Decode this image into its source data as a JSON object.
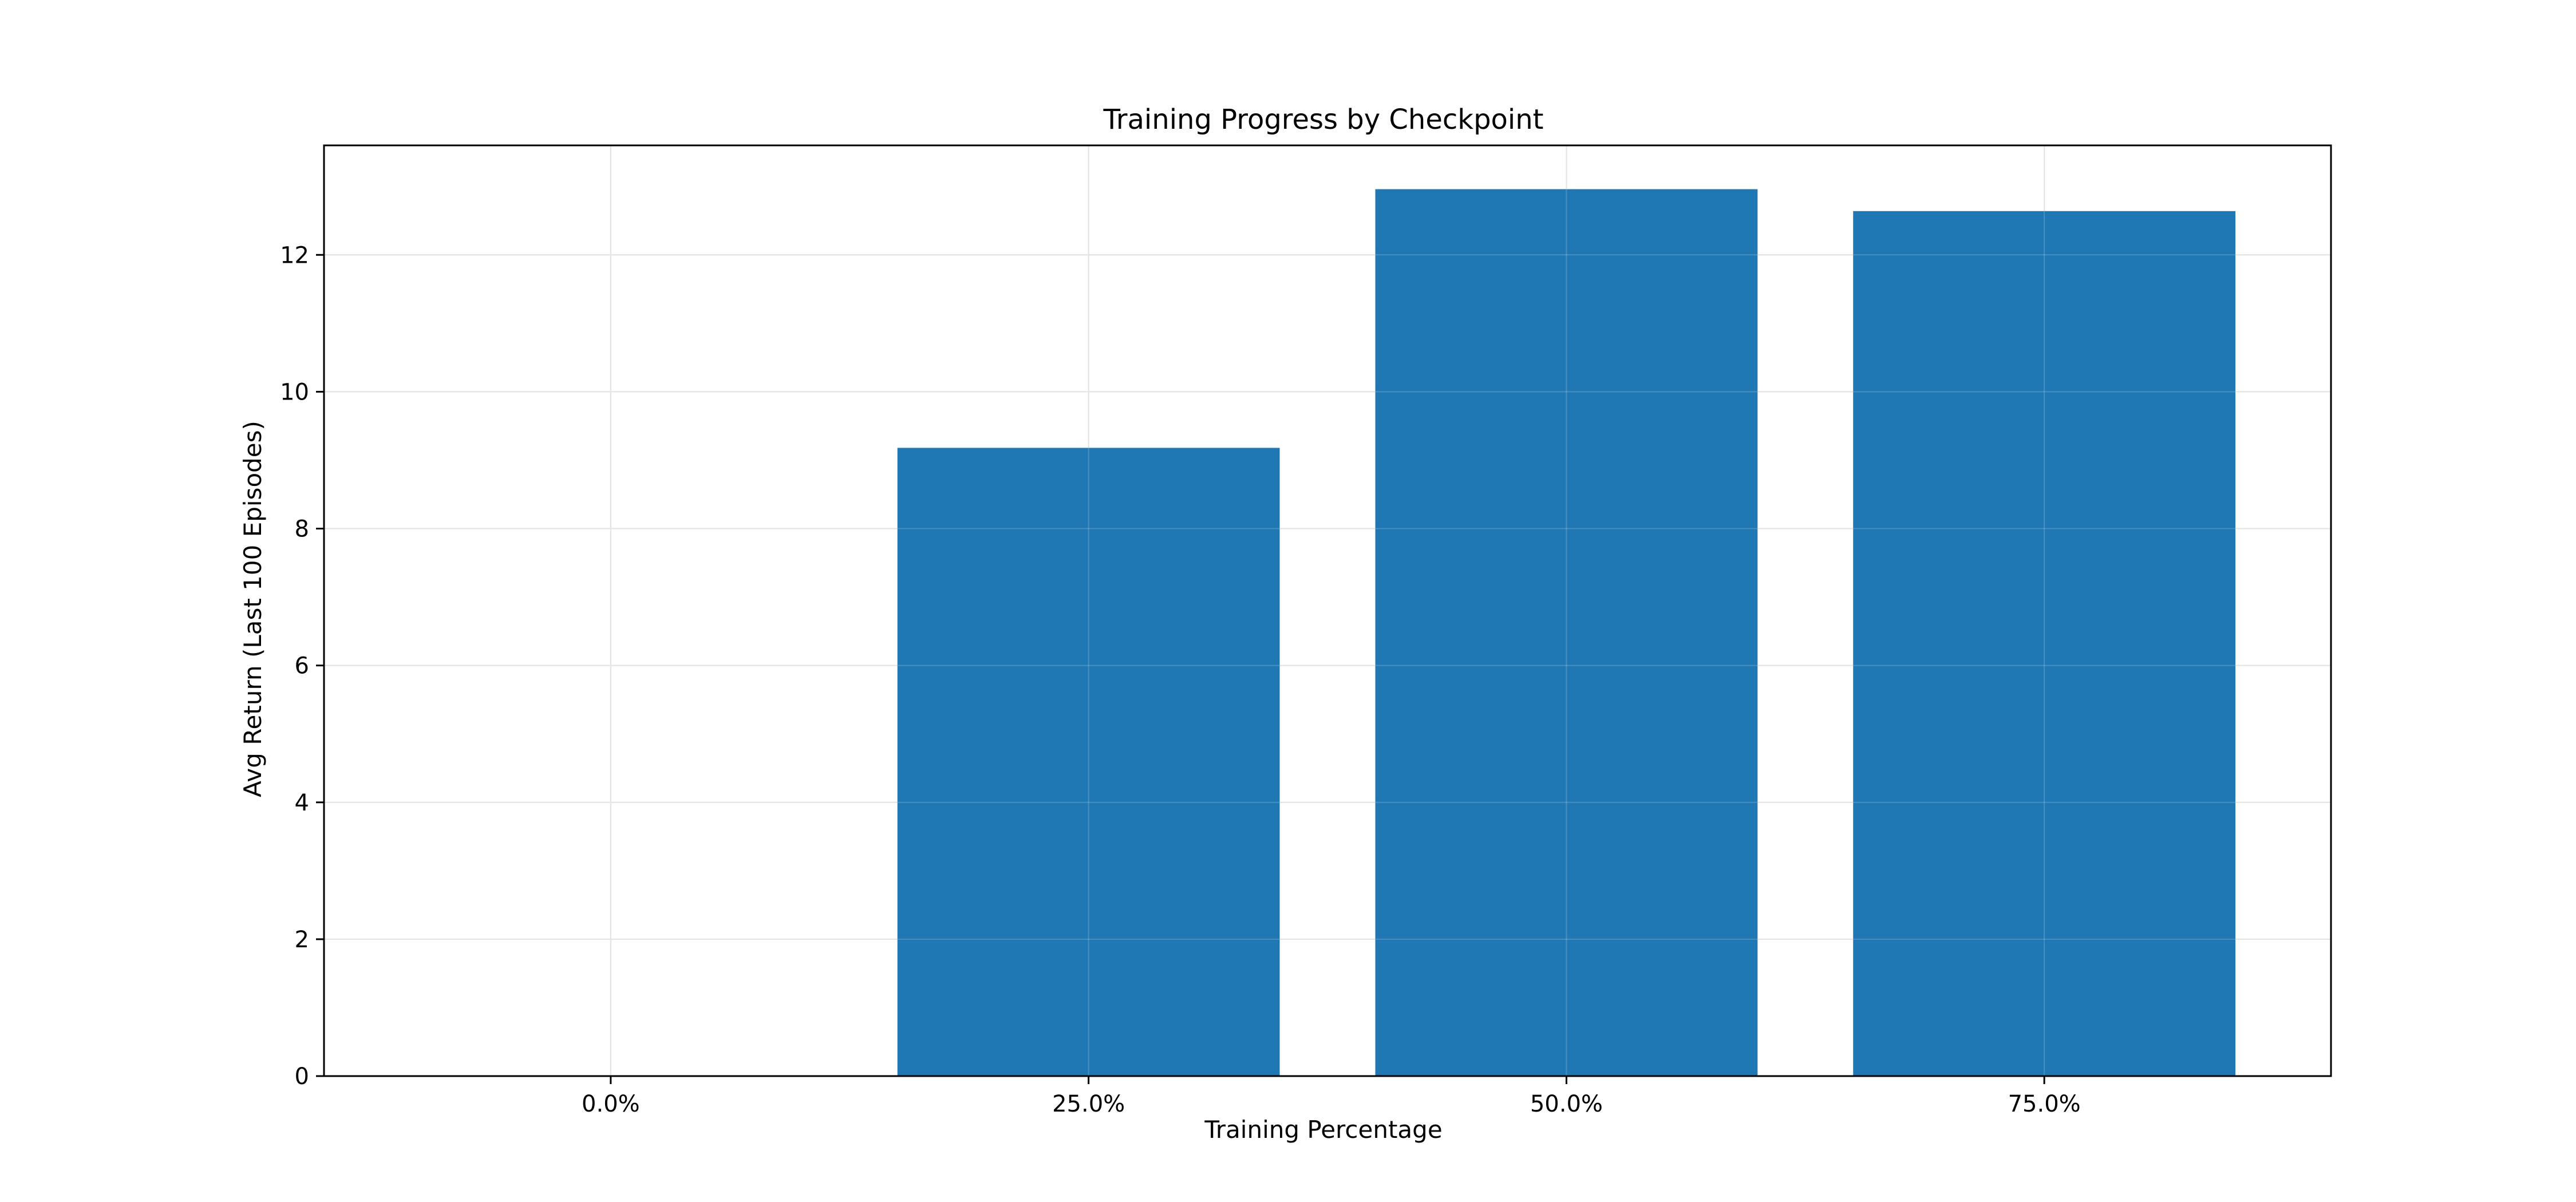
{
  "chart_data": {
    "type": "bar",
    "title": "Training Progress by Checkpoint",
    "xlabel": "Training Percentage",
    "ylabel": "Avg Return (Last 100 Episodes)",
    "categories": [
      "0.0%",
      "25.0%",
      "50.0%",
      "75.0%"
    ],
    "values": [
      0.0,
      9.18,
      12.96,
      12.64
    ],
    "ylim": [
      0,
      13.6
    ],
    "yticks": [
      0,
      2,
      4,
      6,
      8,
      10,
      12
    ],
    "grid": true,
    "legend": "none",
    "bar_color": "#1f77b4",
    "grid_color": "#dcdcdc"
  }
}
